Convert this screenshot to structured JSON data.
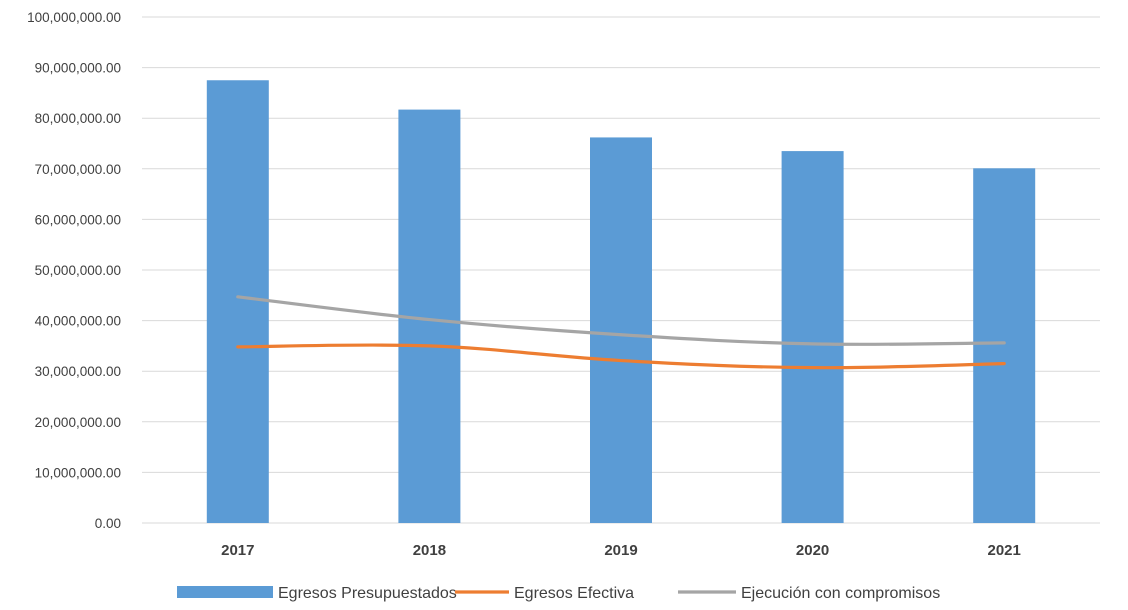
{
  "chart_data": {
    "type": "bar",
    "categories": [
      "2017",
      "2018",
      "2019",
      "2020",
      "2021"
    ],
    "ylim": [
      0,
      100000000
    ],
    "y_ticks": [
      "0.00",
      "10,000,000.00",
      "20,000,000.00",
      "30,000,000.00",
      "40,000,000.00",
      "50,000,000.00",
      "60,000,000.00",
      "70,000,000.00",
      "80,000,000.00",
      "90,000,000.00",
      "100,000,000.00"
    ],
    "grid": true,
    "legend_position": "bottom",
    "series": [
      {
        "name": "Egresos Presupuestados",
        "type": "bar",
        "color": "#5b9bd5",
        "values": [
          87500000,
          81700000,
          76200000,
          73500000,
          70100000
        ]
      },
      {
        "name": "Egresos Efectiva",
        "type": "line",
        "color": "#ed7d31",
        "values": [
          34800000,
          35000000,
          32100000,
          30700000,
          31500000
        ]
      },
      {
        "name": "Ejecución con compromisos",
        "type": "line",
        "color": "#a5a5a5",
        "values": [
          44700000,
          40200000,
          37200000,
          35400000,
          35600000
        ]
      }
    ]
  }
}
